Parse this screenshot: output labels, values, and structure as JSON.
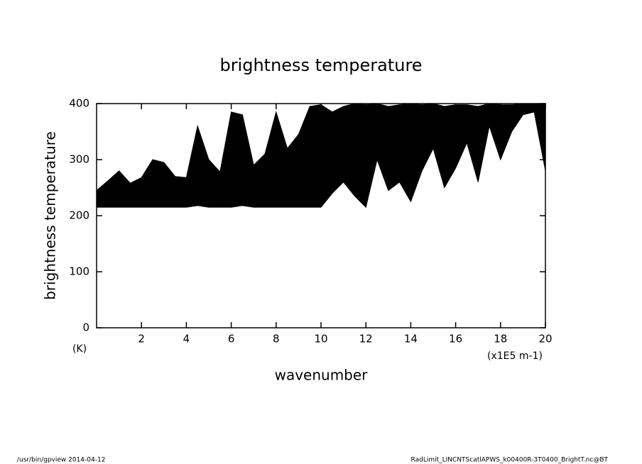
{
  "chart_data": {
    "type": "band",
    "title": "brightness temperature",
    "ylabel": "brightness temperature",
    "yunit": "(K)",
    "xlabel": "wavenumber",
    "xunit": "(x1E5 m-1)",
    "footer_left": "/usr/bin/gpview   2014-04-12",
    "footer_right": "RadLimit_LINCNTScatlAPWS_k00400R-3T0400_BrightT.nc@BT",
    "color": "#000000",
    "xlim": [
      0,
      20
    ],
    "xticks": [
      2,
      4,
      6,
      8,
      10,
      12,
      14,
      16,
      18,
      20
    ],
    "ylim": [
      0,
      400
    ],
    "yticks": [
      0,
      100,
      200,
      300,
      400
    ],
    "x": [
      0,
      0.5,
      1,
      1.5,
      2,
      2.5,
      3,
      3.5,
      4,
      4.5,
      5,
      5.5,
      6,
      6.5,
      7,
      7.5,
      8,
      8.5,
      9,
      9.5,
      10,
      10.5,
      11,
      11.5,
      12,
      12.5,
      13,
      13.5,
      14,
      14.5,
      15,
      15.5,
      16,
      16.5,
      17,
      17.5,
      18,
      18.5,
      19,
      19.5,
      20
    ],
    "upper": [
      245,
      262,
      280,
      258,
      268,
      300,
      295,
      270,
      268,
      360,
      300,
      278,
      385,
      380,
      290,
      310,
      385,
      320,
      345,
      395,
      398,
      385,
      395,
      400,
      398,
      400,
      395,
      398,
      400,
      398,
      400,
      395,
      398,
      398,
      395,
      400,
      398,
      398,
      400,
      400,
      400
    ],
    "lower": [
      215,
      215,
      215,
      215,
      215,
      215,
      215,
      215,
      215,
      218,
      215,
      215,
      215,
      218,
      215,
      215,
      215,
      215,
      215,
      215,
      215,
      240,
      260,
      235,
      215,
      300,
      245,
      260,
      225,
      280,
      320,
      250,
      285,
      330,
      260,
      360,
      300,
      350,
      380,
      385,
      280
    ]
  }
}
